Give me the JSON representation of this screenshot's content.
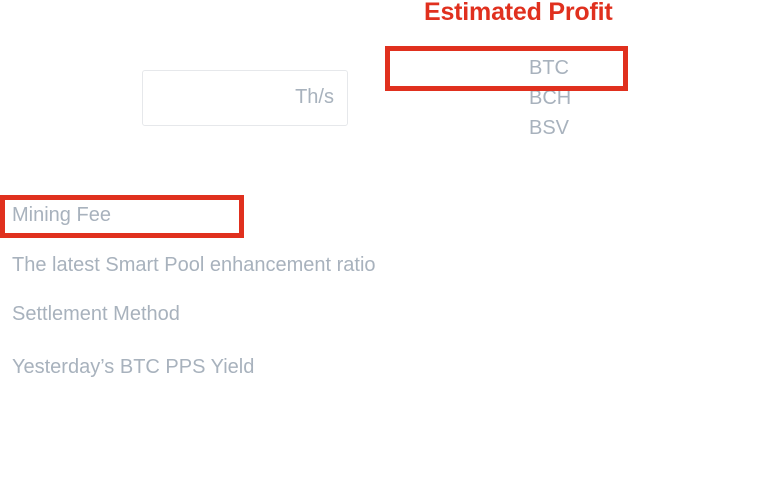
{
  "calculator": {
    "title": "Estimated Profit",
    "hashrate_value": "",
    "hashrate_unit": "Th/s",
    "coins": [
      "BTC",
      "BCH",
      "BSV"
    ],
    "selected_coin": "BTC"
  },
  "info": {
    "mining_fee_label": "Mining Fee",
    "smart_pool_ratio_label": "The latest Smart Pool enhancement ratio",
    "settlement_method_label": "Settlement Method",
    "pps_yield_label": "Yesterday’s BTC PPS Yield"
  },
  "colors": {
    "title": "#e0301e",
    "highlight": "#e0301e",
    "muted_text": "#a8b2bd",
    "input_border": "#e6e8eb"
  }
}
